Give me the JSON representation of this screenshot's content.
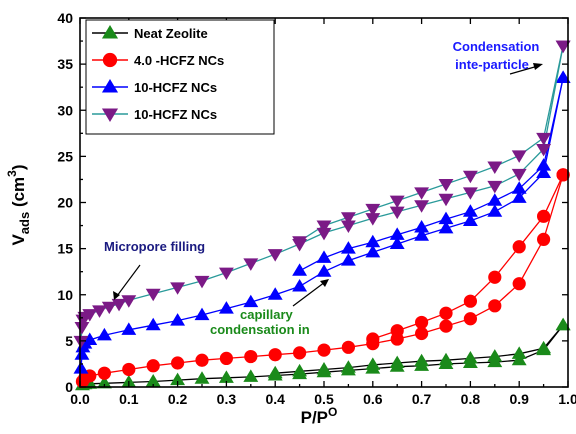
{
  "chart_data": {
    "type": "line",
    "xlabel": "P/P",
    "xlabel_sup": "O",
    "ylabel": "V",
    "ylabel_sub": "ads",
    "ylabel_unit_open": " (cm",
    "ylabel_unit_sup": "3",
    "ylabel_unit_close": ")",
    "xlim": [
      0.0,
      1.0
    ],
    "ylim": [
      0,
      40
    ],
    "xticks": [
      "0.0",
      "0.1",
      "0.2",
      "0.3",
      "0.4",
      "0.5",
      "0.6",
      "0.7",
      "0.8",
      "0.9",
      "1.0"
    ],
    "yticks": [
      "0",
      "5",
      "10",
      "15",
      "20",
      "25",
      "30",
      "35",
      "40"
    ],
    "grid": false,
    "legend_position": "top-left",
    "series": [
      {
        "name": "Neat Zeolite",
        "color": "#1a8a1a",
        "line_color": "#000000",
        "marker": "triangle-up",
        "adsorption": [
          [
            0.005,
            0.2
          ],
          [
            0.01,
            0.3
          ],
          [
            0.02,
            0.35
          ],
          [
            0.05,
            0.4
          ],
          [
            0.1,
            0.5
          ],
          [
            0.15,
            0.6
          ],
          [
            0.2,
            0.75
          ],
          [
            0.25,
            0.9
          ],
          [
            0.3,
            1.0
          ],
          [
            0.35,
            1.1
          ],
          [
            0.4,
            1.25
          ],
          [
            0.45,
            1.4
          ],
          [
            0.5,
            1.6
          ],
          [
            0.55,
            1.8
          ],
          [
            0.6,
            2.0
          ],
          [
            0.65,
            2.2
          ],
          [
            0.7,
            2.3
          ],
          [
            0.75,
            2.5
          ],
          [
            0.8,
            2.6
          ],
          [
            0.85,
            2.7
          ],
          [
            0.9,
            2.9
          ],
          [
            0.95,
            4.0
          ],
          [
            0.99,
            6.7
          ]
        ],
        "desorption": [
          [
            0.99,
            6.7
          ],
          [
            0.95,
            4.2
          ],
          [
            0.9,
            3.6
          ],
          [
            0.85,
            3.3
          ],
          [
            0.8,
            3.1
          ],
          [
            0.75,
            2.9
          ],
          [
            0.7,
            2.8
          ],
          [
            0.65,
            2.6
          ],
          [
            0.6,
            2.4
          ],
          [
            0.55,
            2.1
          ],
          [
            0.5,
            1.9
          ],
          [
            0.45,
            1.7
          ],
          [
            0.4,
            1.5
          ]
        ]
      },
      {
        "name": "4.0 -HCFZ NCs",
        "color": "#ff0000",
        "line_color": "#ff0000",
        "marker": "circle",
        "adsorption": [
          [
            0.005,
            0.6
          ],
          [
            0.01,
            1.0
          ],
          [
            0.02,
            1.2
          ],
          [
            0.05,
            1.5
          ],
          [
            0.1,
            1.9
          ],
          [
            0.15,
            2.3
          ],
          [
            0.2,
            2.6
          ],
          [
            0.25,
            2.9
          ],
          [
            0.3,
            3.1
          ],
          [
            0.35,
            3.3
          ],
          [
            0.4,
            3.5
          ],
          [
            0.45,
            3.7
          ],
          [
            0.5,
            4.0
          ],
          [
            0.55,
            4.3
          ],
          [
            0.6,
            4.7
          ],
          [
            0.65,
            5.2
          ],
          [
            0.7,
            5.8
          ],
          [
            0.75,
            6.6
          ],
          [
            0.8,
            7.4
          ],
          [
            0.85,
            8.8
          ],
          [
            0.9,
            11.2
          ],
          [
            0.95,
            16.0
          ],
          [
            0.99,
            23.0
          ]
        ],
        "desorption": [
          [
            0.99,
            23.0
          ],
          [
            0.95,
            18.5
          ],
          [
            0.9,
            15.2
          ],
          [
            0.85,
            11.9
          ],
          [
            0.8,
            9.3
          ],
          [
            0.75,
            8.0
          ],
          [
            0.7,
            7.0
          ],
          [
            0.65,
            6.1
          ],
          [
            0.6,
            5.2
          ]
        ]
      },
      {
        "name": "10-HCFZ NCs",
        "color": "#0000ff",
        "line_color": "#0000ff",
        "marker": "triangle-up",
        "adsorption": [
          [
            0.002,
            2.0
          ],
          [
            0.004,
            3.5
          ],
          [
            0.006,
            4.3
          ],
          [
            0.01,
            4.7
          ],
          [
            0.02,
            5.1
          ],
          [
            0.05,
            5.6
          ],
          [
            0.1,
            6.2
          ],
          [
            0.15,
            6.7
          ],
          [
            0.2,
            7.2
          ],
          [
            0.25,
            7.8
          ],
          [
            0.3,
            8.5
          ],
          [
            0.35,
            9.2
          ],
          [
            0.4,
            10.0
          ],
          [
            0.45,
            10.9
          ],
          [
            0.5,
            12.5
          ],
          [
            0.55,
            13.7
          ],
          [
            0.6,
            14.6
          ],
          [
            0.65,
            15.5
          ],
          [
            0.7,
            16.4
          ],
          [
            0.75,
            17.2
          ],
          [
            0.8,
            18.0
          ],
          [
            0.85,
            19.0
          ],
          [
            0.9,
            20.5
          ],
          [
            0.95,
            23.2
          ],
          [
            0.99,
            33.5
          ]
        ],
        "desorption": [
          [
            0.99,
            33.5
          ],
          [
            0.95,
            24.0
          ],
          [
            0.9,
            21.5
          ],
          [
            0.85,
            20.2
          ],
          [
            0.8,
            19.0
          ],
          [
            0.75,
            18.2
          ],
          [
            0.7,
            17.3
          ],
          [
            0.65,
            16.5
          ],
          [
            0.6,
            15.7
          ],
          [
            0.55,
            15.0
          ],
          [
            0.5,
            14.0
          ],
          [
            0.45,
            12.6
          ]
        ]
      },
      {
        "name": "10-HCFZ NCs",
        "color": "#7b1a86",
        "line_color": "#2a9a9a",
        "marker": "triangle-down",
        "adsorption": [
          [
            0.002,
            5.0
          ],
          [
            0.004,
            6.5
          ],
          [
            0.006,
            7.3
          ],
          [
            0.01,
            7.6
          ],
          [
            0.02,
            7.9
          ],
          [
            0.04,
            8.3
          ],
          [
            0.06,
            8.7
          ],
          [
            0.08,
            9.0
          ],
          [
            0.1,
            9.4
          ],
          [
            0.15,
            10.1
          ],
          [
            0.2,
            10.8
          ],
          [
            0.25,
            11.5
          ],
          [
            0.3,
            12.4
          ],
          [
            0.35,
            13.4
          ],
          [
            0.4,
            14.4
          ],
          [
            0.45,
            15.5
          ],
          [
            0.5,
            16.7
          ],
          [
            0.55,
            17.5
          ],
          [
            0.6,
            18.3
          ],
          [
            0.65,
            19.0
          ],
          [
            0.7,
            19.7
          ],
          [
            0.75,
            20.4
          ],
          [
            0.8,
            21.1
          ],
          [
            0.85,
            21.8
          ],
          [
            0.9,
            23.1
          ],
          [
            0.95,
            25.8
          ],
          [
            0.99,
            37.0
          ]
        ],
        "desorption": [
          [
            0.99,
            37.0
          ],
          [
            0.95,
            27.0
          ],
          [
            0.9,
            25.1
          ],
          [
            0.85,
            23.9
          ],
          [
            0.8,
            22.9
          ],
          [
            0.75,
            22.0
          ],
          [
            0.7,
            21.1
          ],
          [
            0.65,
            20.2
          ],
          [
            0.6,
            19.3
          ],
          [
            0.55,
            18.4
          ],
          [
            0.5,
            17.5
          ],
          [
            0.45,
            15.8
          ]
        ]
      }
    ],
    "annotations": [
      {
        "text": "Condensation",
        "color": "#1a1aff"
      },
      {
        "text": "inte-particle",
        "color": "#1a1aff"
      },
      {
        "text": "Micropore filling",
        "color": "#1a1a80"
      },
      {
        "text": "capillary",
        "color": "#1a8a1a"
      },
      {
        "text": "condensation in",
        "color": "#1a8a1a"
      }
    ]
  }
}
